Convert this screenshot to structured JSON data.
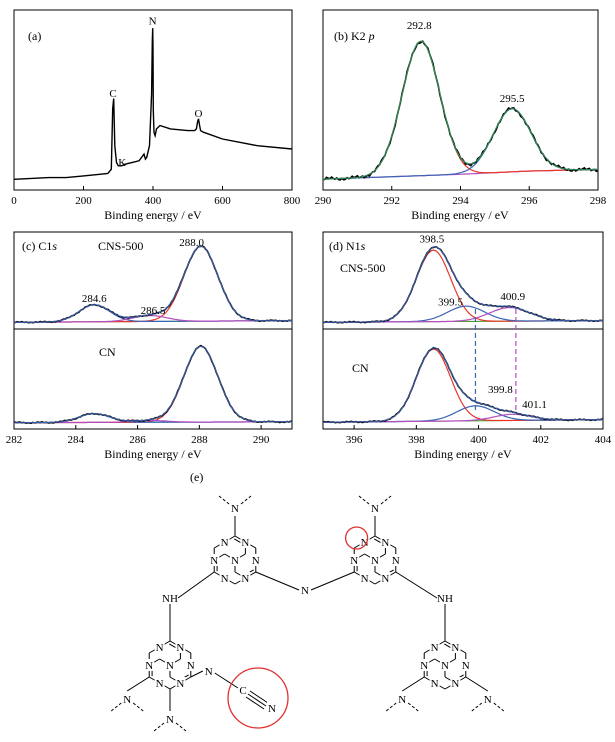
{
  "colors": {
    "raw": "#000000",
    "fit": "#2e8b57",
    "red": "#e8362b",
    "blue": "#3a64b5",
    "magenta": "#b24fc0",
    "green": "#4e9a2e",
    "teal": "#2aa7a0",
    "circle": "#e03030",
    "dash_blue": "#3a64b5",
    "dash_magenta": "#b24fc0"
  },
  "chart_data": [
    {
      "id": "a",
      "type": "line",
      "panel_label": "(a)",
      "xlabel": "Binding energy / eV",
      "ylabel": "",
      "xlim": [
        0,
        800
      ],
      "ylim": [
        0,
        1
      ],
      "xticks": [
        0,
        200,
        400,
        600,
        800
      ],
      "annotations": [
        {
          "text": "C",
          "x": 285,
          "y": 0.53
        },
        {
          "text": "K",
          "x": 300,
          "y": 0.12
        },
        {
          "text": "N",
          "x": 399,
          "y": 0.96
        },
        {
          "text": "O",
          "x": 531,
          "y": 0.41
        }
      ],
      "series": [
        {
          "role": "raw",
          "x": [
            0,
            50,
            100,
            150,
            200,
            250,
            270,
            280,
            284,
            287,
            290,
            295,
            300,
            310,
            320,
            360,
            374,
            378,
            382,
            390,
            396,
            398,
            399,
            400,
            401,
            403,
            406,
            410,
            420,
            450,
            500,
            520,
            525,
            528,
            531,
            534,
            537,
            545,
            600,
            700,
            800
          ],
          "y": [
            0.04,
            0.045,
            0.05,
            0.05,
            0.06,
            0.07,
            0.075,
            0.1,
            0.46,
            0.52,
            0.24,
            0.14,
            0.12,
            0.12,
            0.13,
            0.15,
            0.19,
            0.16,
            0.17,
            0.24,
            0.55,
            0.86,
            0.94,
            0.82,
            0.45,
            0.32,
            0.3,
            0.34,
            0.36,
            0.34,
            0.33,
            0.33,
            0.34,
            0.38,
            0.4,
            0.36,
            0.33,
            0.32,
            0.28,
            0.24,
            0.22
          ]
        }
      ]
    },
    {
      "id": "b",
      "type": "line",
      "panel_label": "(b) K2p",
      "xlabel": "Binding energy / eV",
      "ylabel": "",
      "xlim": [
        290,
        298
      ],
      "ylim": [
        0,
        1
      ],
      "xticks": [
        290,
        292,
        294,
        296,
        298
      ],
      "annotations": [
        {
          "text": "292.8",
          "x": 292.8,
          "y": 0.98
        },
        {
          "text": "295.5",
          "x": 295.5,
          "y": 0.53
        }
      ],
      "peaks": [
        {
          "role": "red",
          "center": 292.85,
          "height": 0.83,
          "width": 0.55,
          "baseline": true
        },
        {
          "role": "blue",
          "center": 295.5,
          "height": 0.39,
          "width": 0.55,
          "baseline": true
        }
      ],
      "background": {
        "role": "magenta",
        "x": [
          290,
          292,
          294,
          296,
          298
        ],
        "y": [
          0.03,
          0.045,
          0.06,
          0.08,
          0.09
        ]
      },
      "fit": "fit",
      "raw": "raw"
    },
    {
      "id": "c",
      "type": "line",
      "panel_label": "(c) C1s",
      "xlabel": "Binding energy / eV",
      "ylabel": "",
      "xlim": [
        282,
        291
      ],
      "ylim": [
        0,
        1
      ],
      "xticks": [
        282,
        284,
        286,
        288,
        290
      ],
      "subpanels": [
        {
          "label": "CNS-500",
          "annotations": [
            {
              "text": "288.0",
              "x": 287.75,
              "y": 0.92
            },
            {
              "text": "284.6",
              "x": 284.6,
              "y": 0.26
            },
            {
              "text": "286.5",
              "x": 286.5,
              "y": 0.12
            }
          ],
          "peaks": [
            {
              "role": "red",
              "center": 288.05,
              "height": 0.88,
              "width": 0.55
            },
            {
              "role": "blue",
              "center": 284.6,
              "height": 0.2,
              "width": 0.5
            },
            {
              "role": "magenta",
              "center": 286.4,
              "height": 0.07,
              "width": 0.55
            }
          ],
          "background": {
            "role": "green",
            "x": [
              282,
              291
            ],
            "y": [
              0.02,
              0.04
            ]
          }
        },
        {
          "label": "CN",
          "annotations": [],
          "peaks": [
            {
              "role": "red",
              "center": 288.05,
              "height": 0.86,
              "width": 0.55
            },
            {
              "role": "blue",
              "center": 284.6,
              "height": 0.1,
              "width": 0.5
            },
            {
              "role": "magenta",
              "center": 286.4,
              "height": 0.02,
              "width": 0.55
            }
          ],
          "background": {
            "role": "teal",
            "x": [
              282,
              291
            ],
            "y": [
              0.015,
              0.025
            ]
          }
        }
      ]
    },
    {
      "id": "d",
      "type": "line",
      "panel_label": "(d) N1s",
      "xlabel": "Binding energy / eV",
      "ylabel": "",
      "xlim": [
        395,
        404
      ],
      "ylim": [
        0,
        1
      ],
      "xticks": [
        396,
        398,
        400,
        402,
        404
      ],
      "subpanels": [
        {
          "label": "CNS-500",
          "annotations": [
            {
              "text": "398.5",
              "x": 398.5,
              "y": 0.96
            },
            {
              "text": "399.5",
              "x": 399.1,
              "y": 0.22
            },
            {
              "text": "400.9",
              "x": 401.1,
              "y": 0.28
            }
          ],
          "peaks": [
            {
              "role": "red",
              "center": 398.55,
              "height": 0.84,
              "width": 0.55
            },
            {
              "role": "blue",
              "center": 399.6,
              "height": 0.18,
              "width": 0.6
            },
            {
              "role": "magenta",
              "center": 401.0,
              "height": 0.16,
              "width": 0.65
            }
          ],
          "background": {
            "role": "green",
            "x": [
              395,
              404
            ],
            "y": [
              0.02,
              0.04
            ]
          }
        },
        {
          "label": "CN",
          "annotations": [
            {
              "text": "399.8",
              "x": 400.7,
              "y": 0.35
            },
            {
              "text": "401.1",
              "x": 401.8,
              "y": 0.18
            }
          ],
          "peaks": [
            {
              "role": "red",
              "center": 398.55,
              "height": 0.82,
              "width": 0.55
            },
            {
              "role": "blue",
              "center": 399.9,
              "height": 0.17,
              "width": 0.6
            },
            {
              "role": "magenta",
              "center": 401.1,
              "height": 0.07,
              "width": 0.6
            }
          ],
          "background": {
            "role": "green",
            "x": [
              395,
              404
            ],
            "y": [
              0.02,
              0.05
            ]
          }
        }
      ],
      "guides": [
        {
          "role": "dash_blue",
          "x": 399.9
        },
        {
          "role": "dash_magenta",
          "x": 401.2
        }
      ]
    }
  ],
  "structure": {
    "panel_label": "(e)",
    "atom_N": "N",
    "atom_C": "C",
    "linker": "N",
    "linker_h": "NH"
  }
}
